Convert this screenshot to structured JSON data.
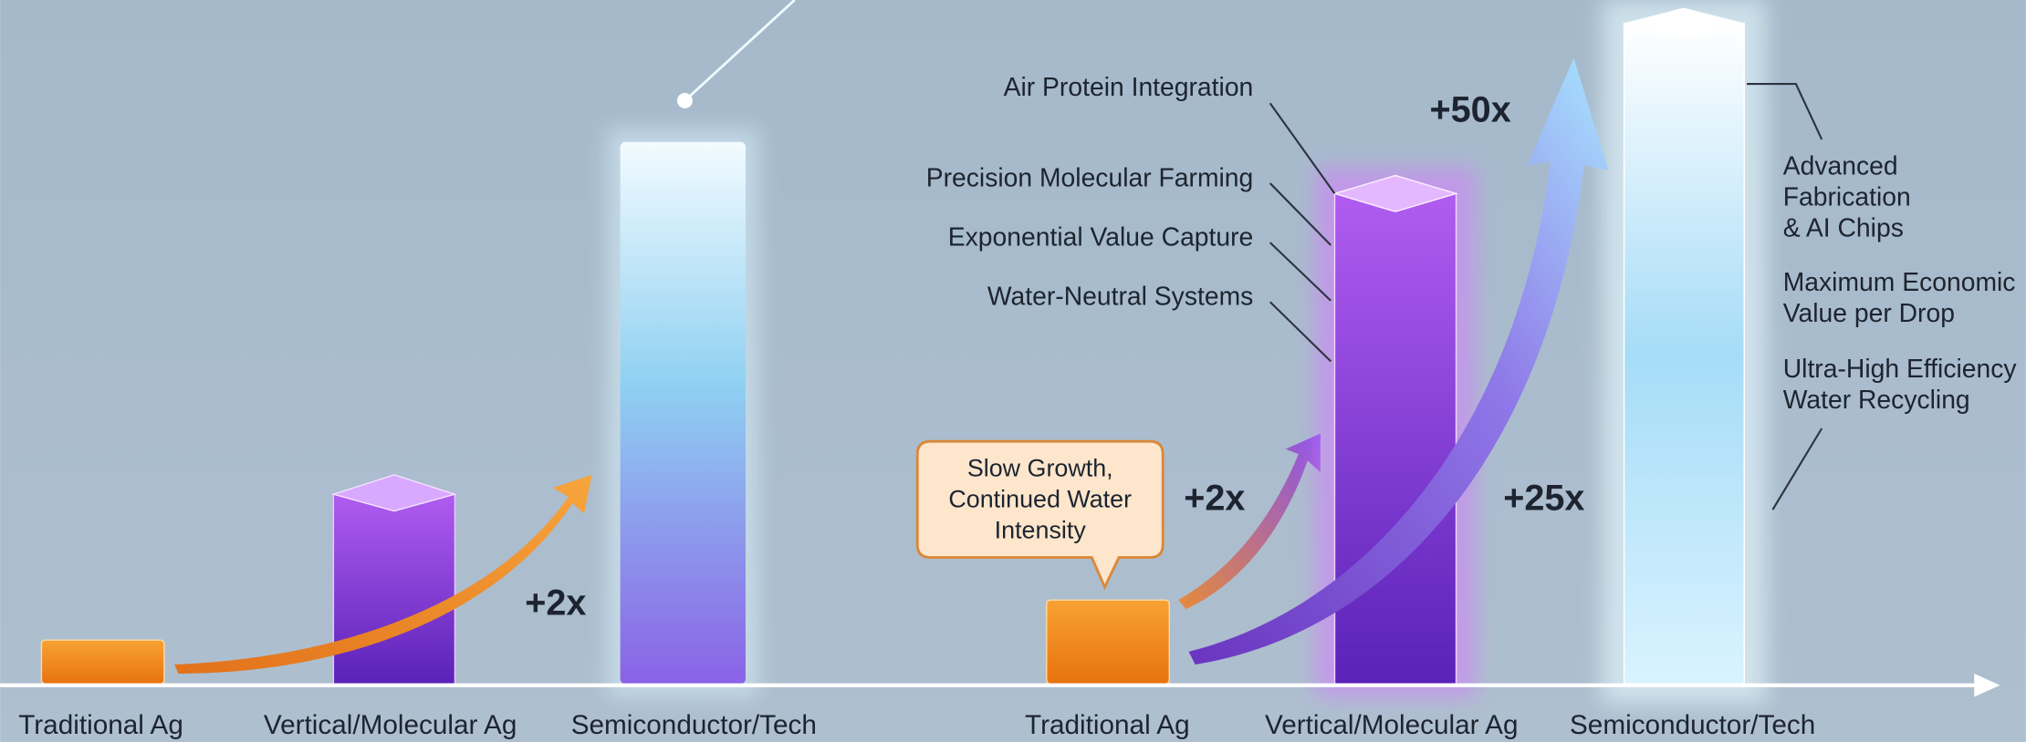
{
  "left_panel": {
    "categories": [
      "Traditional Ag",
      "Vertical/Molecular Ag",
      "Semiconductor/Tech"
    ],
    "multiplier": "+2x"
  },
  "right_panel": {
    "categories": [
      "Traditional Ag",
      "Vertical/Molecular Ag",
      "Semiconductor/Tech"
    ],
    "callout": [
      "Slow Growth,",
      "Continued Water",
      "Intensity"
    ],
    "multipliers": [
      "+2x",
      "+25x",
      "+50x"
    ],
    "features": [
      "Air Protein Integration",
      "Precision Molecular Farming",
      "Exponential Value Capture",
      "Water-Neutral Systems"
    ],
    "outcomes": [
      [
        "Advanced",
        "Fabrication",
        "& AI Chips"
      ],
      [
        "Maximum Economic",
        "Value per Drop"
      ],
      [
        "Ultra-High Efficiency",
        "Water Recycling"
      ]
    ]
  }
}
